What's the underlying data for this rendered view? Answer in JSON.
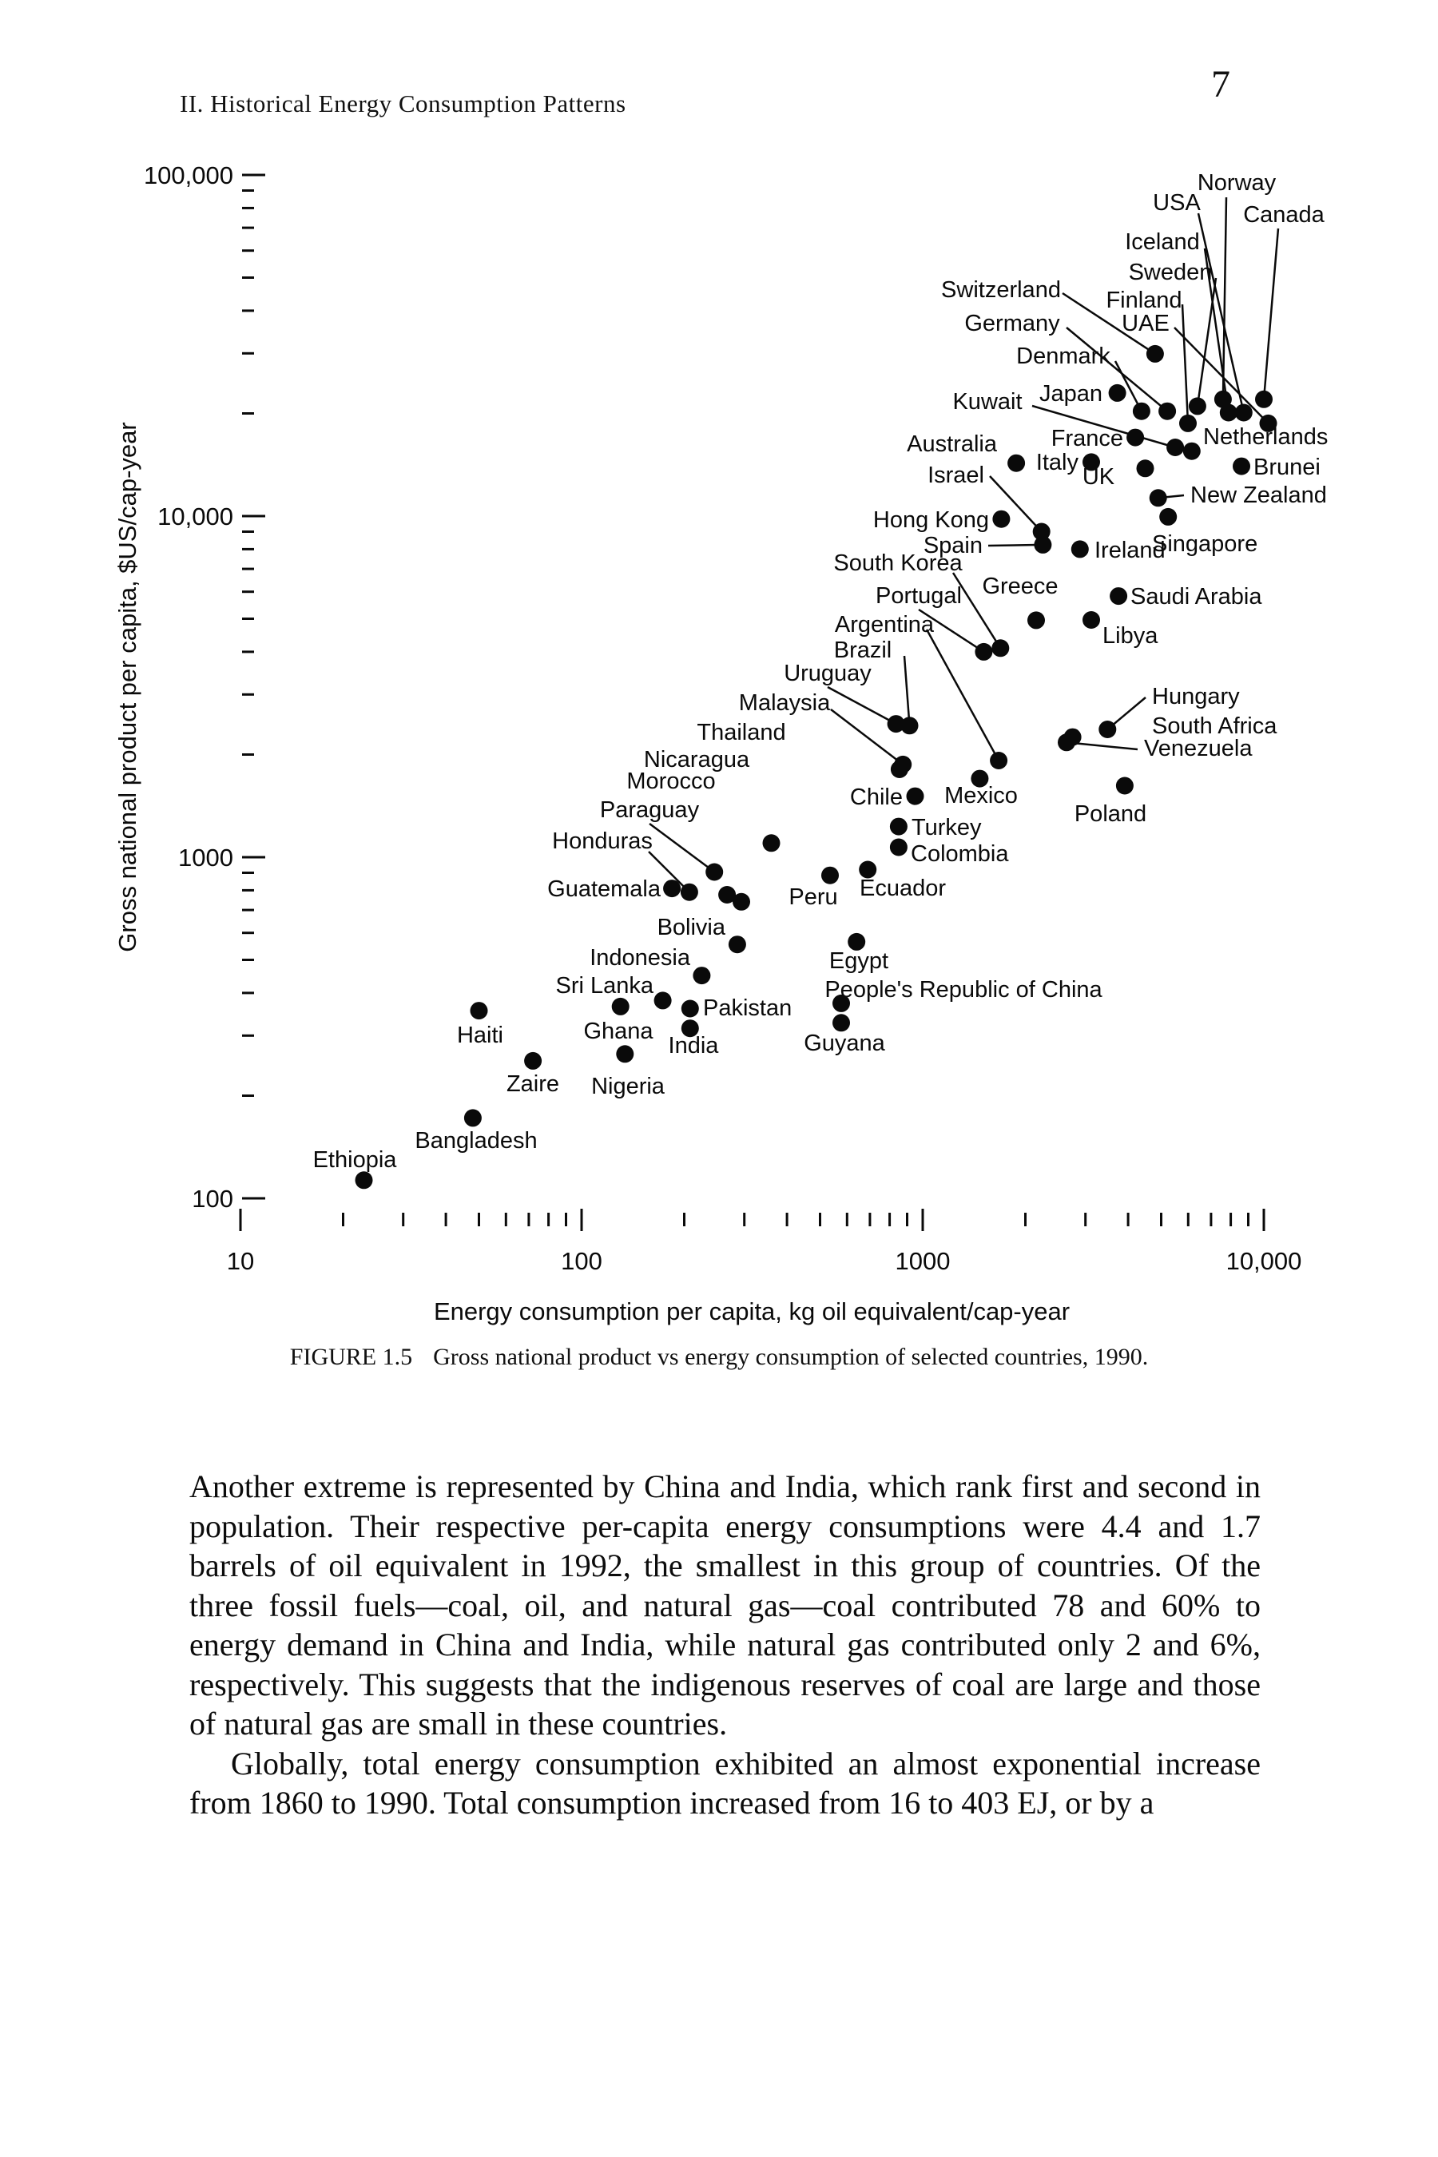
{
  "page": {
    "header": "II. Historical Energy Consumption Patterns",
    "page_number": "7"
  },
  "caption": {
    "tag": "FIGURE 1.5",
    "text": "Gross national product vs energy consumption of selected countries, 1990."
  },
  "body": {
    "para1": "Another extreme is represented by China and India, which rank first and second in population. Their respective per-capita energy consumptions were 4.4 and 1.7 barrels of oil equivalent in 1992, the smallest in this group of countries. Of the three fossil fuels—coal, oil, and natural gas—coal contributed 78 and 60% to energy demand in China and India, while natural gas contributed only 2 and 6%, respectively. This suggests that the indigenous reserves of coal are large and those of natural gas are small in these countries.",
    "para2": "Globally, total energy consumption exhibited an almost exponential increase from 1860 to 1990. Total consumption increased from 16 to 403 EJ, or by a"
  },
  "chart_data": {
    "type": "scatter",
    "title": "Gross national product vs energy consumption of selected countries, 1990",
    "xlabel": "Energy consumption per capita, kg oil equivalent/cap-year",
    "ylabel": "Gross national product per capita, $US/cap-year",
    "xscale": "log",
    "yscale": "log",
    "xlim": [
      10,
      10000
    ],
    "ylim": [
      100,
      100000
    ],
    "grid": false,
    "x_ticks": [
      {
        "v": 10,
        "label": "10"
      },
      {
        "v": 100,
        "label": "100"
      },
      {
        "v": 1000,
        "label": "1000"
      },
      {
        "v": 10000,
        "label": "10,000"
      }
    ],
    "y_ticks": [
      {
        "v": 100,
        "label": "100"
      },
      {
        "v": 1000,
        "label": "1000"
      },
      {
        "v": 10000,
        "label": "10,000"
      },
      {
        "v": 100000,
        "label": "100,000"
      }
    ],
    "points": [
      {
        "name": "Ethiopia",
        "energy": 23,
        "gnp": 113,
        "label": {
          "x": 444,
          "y": 1461,
          "anchor": "m"
        }
      },
      {
        "name": "Bangladesh",
        "energy": 48,
        "gnp": 172,
        "label": {
          "x": 596,
          "y": 1437,
          "anchor": "m"
        }
      },
      {
        "name": "Haiti",
        "energy": 50,
        "gnp": 355,
        "label": {
          "x": 601,
          "y": 1305,
          "anchor": "m"
        }
      },
      {
        "name": "Zaire",
        "energy": 72,
        "gnp": 253,
        "label": {
          "x": 667,
          "y": 1366,
          "anchor": "m"
        }
      },
      {
        "name": "Nigeria",
        "energy": 134,
        "gnp": 265,
        "label": {
          "x": 786,
          "y": 1369,
          "anchor": "m"
        }
      },
      {
        "name": "Ghana",
        "energy": 130,
        "gnp": 365,
        "label": {
          "x": 774,
          "y": 1300,
          "anchor": "m"
        }
      },
      {
        "name": "Sri Lanka",
        "energy": 173,
        "gnp": 380,
        "label": {
          "x": 818,
          "y": 1243,
          "anchor": "e"
        }
      },
      {
        "name": "Pakistan",
        "energy": 208,
        "gnp": 360,
        "label": {
          "x": 880,
          "y": 1271,
          "anchor": "s"
        }
      },
      {
        "name": "India",
        "energy": 208,
        "gnp": 315,
        "label": {
          "x": 868,
          "y": 1318,
          "anchor": "m"
        }
      },
      {
        "name": "Indonesia",
        "energy": 225,
        "gnp": 450,
        "label": {
          "x": 864,
          "y": 1208,
          "anchor": "e"
        }
      },
      {
        "name": "Bolivia",
        "energy": 286,
        "gnp": 555,
        "label": {
          "x": 908,
          "y": 1170,
          "anchor": "e"
        }
      },
      {
        "name": "People's Republic of China",
        "energy": 577,
        "gnp": 373,
        "label": {
          "x": 1206,
          "y": 1248,
          "anchor": "m"
        }
      },
      {
        "name": "Guyana",
        "energy": 577,
        "gnp": 327,
        "label": {
          "x": 1057,
          "y": 1315,
          "anchor": "m"
        }
      },
      {
        "name": "Egypt",
        "energy": 640,
        "gnp": 565,
        "label": {
          "x": 1075,
          "y": 1212,
          "anchor": "m"
        }
      },
      {
        "name": "Guatemala",
        "energy": 184,
        "gnp": 810,
        "label": {
          "x": 827,
          "y": 1122,
          "anchor": "e"
        }
      },
      {
        "name": "Honduras",
        "energy": 207,
        "gnp": 790,
        "label": {
          "x": 754,
          "y": 1062,
          "anchor": "m"
        },
        "leader": true,
        "from": [
          812,
          1066
        ]
      },
      {
        "name": "Paraguay",
        "energy": 245,
        "gnp": 905,
        "label": {
          "x": 813,
          "y": 1023,
          "anchor": "m"
        },
        "leader": true,
        "from": [
          813,
          1031
        ]
      },
      {
        "name": "Morocco",
        "energy": 267,
        "gnp": 776,
        "label": {
          "x": 840,
          "y": 987,
          "anchor": "m"
        }
      },
      {
        "name": "Nicaragua",
        "energy": 360,
        "gnp": 1100,
        "label": {
          "x": 872,
          "y": 960,
          "anchor": "m"
        }
      },
      {
        "name": "",
        "energy": 294,
        "gnp": 740
      },
      {
        "name": "Peru",
        "energy": 535,
        "gnp": 885,
        "label": {
          "x": 1018,
          "y": 1132,
          "anchor": "m"
        }
      },
      {
        "name": "Ecuador",
        "energy": 690,
        "gnp": 920,
        "label": {
          "x": 1130,
          "y": 1121,
          "anchor": "m"
        }
      },
      {
        "name": "Turkey",
        "energy": 850,
        "gnp": 1230,
        "label": {
          "x": 1141,
          "y": 1045,
          "anchor": "s"
        }
      },
      {
        "name": "Colombia",
        "energy": 850,
        "gnp": 1070,
        "label": {
          "x": 1140,
          "y": 1078,
          "anchor": "s"
        }
      },
      {
        "name": "Chile",
        "energy": 950,
        "gnp": 1510,
        "label": {
          "x": 1130,
          "y": 1007,
          "anchor": "e"
        }
      },
      {
        "name": "Mexico",
        "energy": 1470,
        "gnp": 1700,
        "label": {
          "x": 1228,
          "y": 1005,
          "anchor": "m"
        }
      },
      {
        "name": "Argentina",
        "energy": 1670,
        "gnp": 1920,
        "label": {
          "x": 1107,
          "y": 791,
          "anchor": "m"
        },
        "leader": true,
        "from": [
          1160,
          788
        ]
      },
      {
        "name": "Brazil",
        "energy": 915,
        "gnp": 2430,
        "label": {
          "x": 1080,
          "y": 823,
          "anchor": "m"
        },
        "leader": true,
        "from": [
          1132,
          821
        ]
      },
      {
        "name": "Uruguay",
        "energy": 835,
        "gnp": 2460,
        "label": {
          "x": 1036,
          "y": 852,
          "anchor": "m"
        },
        "leader": true,
        "from": [
          1036,
          860
        ]
      },
      {
        "name": "Malaysia",
        "energy": 875,
        "gnp": 1870,
        "label": {
          "x": 982,
          "y": 889,
          "anchor": "m"
        },
        "leader": true,
        "from": [
          1040,
          888
        ]
      },
      {
        "name": "Thailand",
        "energy": 855,
        "gnp": 1810,
        "label": {
          "x": 928,
          "y": 926,
          "anchor": "m"
        }
      },
      {
        "name": "Poland",
        "energy": 3910,
        "gnp": 1620,
        "label": {
          "x": 1390,
          "y": 1028,
          "anchor": "m"
        }
      },
      {
        "name": "Hungary",
        "energy": 3480,
        "gnp": 2370,
        "label": {
          "x": 1442,
          "y": 881,
          "anchor": "s"
        },
        "leader": true,
        "from": [
          1434,
          873
        ]
      },
      {
        "name": "South Africa",
        "energy": 2750,
        "gnp": 2250,
        "label": {
          "x": 1442,
          "y": 918,
          "anchor": "s"
        }
      },
      {
        "name": "Venezuela",
        "energy": 2640,
        "gnp": 2170,
        "label": {
          "x": 1432,
          "y": 946,
          "anchor": "s"
        },
        "leader": true,
        "from": [
          1424,
          938
        ]
      },
      {
        "name": "Libya",
        "energy": 3120,
        "gnp": 4960,
        "label": {
          "x": 1380,
          "y": 805,
          "anchor": "s"
        }
      },
      {
        "name": "Greece",
        "energy": 2150,
        "gnp": 4950,
        "label": {
          "x": 1277,
          "y": 743,
          "anchor": "m"
        }
      },
      {
        "name": "Saudi Arabia",
        "energy": 3750,
        "gnp": 5830,
        "label": {
          "x": 1415,
          "y": 756,
          "anchor": "s"
        }
      },
      {
        "name": "South Korea",
        "energy": 1690,
        "gnp": 4100,
        "label": {
          "x": 1124,
          "y": 714,
          "anchor": "m"
        },
        "leader": true,
        "from": [
          1193,
          717
        ]
      },
      {
        "name": "Portugal",
        "energy": 1510,
        "gnp": 4000,
        "label": {
          "x": 1150,
          "y": 755,
          "anchor": "m"
        },
        "leader": true,
        "from": [
          1150,
          763
        ]
      },
      {
        "name": "Spain",
        "energy": 2250,
        "gnp": 8240,
        "label": {
          "x": 1230,
          "y": 692,
          "anchor": "e"
        },
        "leader": true,
        "from": [
          1237,
          683
        ]
      },
      {
        "name": "Israel",
        "energy": 2230,
        "gnp": 9000,
        "label": {
          "x": 1232,
          "y": 604,
          "anchor": "e"
        },
        "leader": true,
        "from": [
          1239,
          596
        ]
      },
      {
        "name": "Ireland",
        "energy": 2890,
        "gnp": 8000,
        "label": {
          "x": 1370,
          "y": 698,
          "anchor": "s"
        }
      },
      {
        "name": "Hong Kong",
        "energy": 1700,
        "gnp": 9800,
        "label": {
          "x": 1238,
          "y": 660,
          "anchor": "e"
        }
      },
      {
        "name": "Singapore",
        "energy": 5240,
        "gnp": 9950,
        "label": {
          "x": 1442,
          "y": 690,
          "anchor": "s"
        }
      },
      {
        "name": "New Zealand",
        "energy": 4900,
        "gnp": 11300,
        "label": {
          "x": 1490,
          "y": 629,
          "anchor": "s"
        },
        "leader": true,
        "from": [
          1482,
          620
        ]
      },
      {
        "name": "UK",
        "energy": 4490,
        "gnp": 13800,
        "label": {
          "x": 1375,
          "y": 606,
          "anchor": "m"
        }
      },
      {
        "name": "Australia",
        "energy": 1880,
        "gnp": 14300,
        "label": {
          "x": 1248,
          "y": 565,
          "anchor": "e"
        }
      },
      {
        "name": "Italy",
        "energy": 3120,
        "gnp": 14400,
        "label": {
          "x": 1350,
          "y": 588,
          "anchor": "e"
        }
      },
      {
        "name": "Brunei",
        "energy": 8600,
        "gnp": 14000,
        "label": {
          "x": 1569,
          "y": 594,
          "anchor": "s"
        }
      },
      {
        "name": "Netherlands",
        "energy": 6150,
        "gnp": 15500,
        "label": {
          "x": 1506,
          "y": 556,
          "anchor": "s"
        }
      },
      {
        "name": "France",
        "energy": 4200,
        "gnp": 17000,
        "label": {
          "x": 1406,
          "y": 558,
          "anchor": "e"
        }
      },
      {
        "name": "Kuwait",
        "energy": 5500,
        "gnp": 15900,
        "label": {
          "x": 1236,
          "y": 512,
          "anchor": "m"
        },
        "leader": true,
        "from": [
          1292,
          508
        ]
      },
      {
        "name": "Japan",
        "energy": 3720,
        "gnp": 22950,
        "label": {
          "x": 1380,
          "y": 502,
          "anchor": "e"
        }
      },
      {
        "name": "Switzerland",
        "energy": 4800,
        "gnp": 29900,
        "label": {
          "x": 1253,
          "y": 372,
          "anchor": "m"
        },
        "leader": true,
        "from": [
          1330,
          367
        ]
      },
      {
        "name": "Denmark",
        "energy": 4380,
        "gnp": 20300,
        "label": {
          "x": 1331,
          "y": 455,
          "anchor": "m"
        },
        "leader": true,
        "from": [
          1396,
          452
        ]
      },
      {
        "name": "Germany",
        "energy": 5210,
        "gnp": 20300,
        "label": {
          "x": 1267,
          "y": 414,
          "anchor": "m"
        },
        "leader": true,
        "from": [
          1335,
          410
        ]
      },
      {
        "name": "Norway",
        "energy": 7590,
        "gnp": 22000,
        "label": {
          "x": 1548,
          "y": 238,
          "anchor": "m"
        },
        "leader": true,
        "from": [
          1535,
          247
        ]
      },
      {
        "name": "USA",
        "energy": 8730,
        "gnp": 20100,
        "label": {
          "x": 1473,
          "y": 263,
          "anchor": "m"
        },
        "leader": true,
        "from": [
          1500,
          267
        ]
      },
      {
        "name": "Canada",
        "energy": 10000,
        "gnp": 22000,
        "label": {
          "x": 1607,
          "y": 278,
          "anchor": "m"
        },
        "leader": true,
        "from": [
          1600,
          286
        ]
      },
      {
        "name": "Iceland",
        "energy": 7880,
        "gnp": 20100,
        "label": {
          "x": 1455,
          "y": 312,
          "anchor": "m"
        },
        "leader": true,
        "from": [
          1508,
          311
        ]
      },
      {
        "name": "Sweden",
        "energy": 6390,
        "gnp": 21000,
        "label": {
          "x": 1465,
          "y": 350,
          "anchor": "m"
        },
        "leader": true,
        "from": [
          1522,
          348
        ]
      },
      {
        "name": "Finland",
        "energy": 5990,
        "gnp": 18700,
        "label": {
          "x": 1432,
          "y": 385,
          "anchor": "m"
        },
        "leader": true,
        "from": [
          1480,
          381
        ]
      },
      {
        "name": "UAE",
        "energy": 10300,
        "gnp": 18700,
        "label": {
          "x": 1434,
          "y": 414,
          "anchor": "m"
        },
        "leader": true,
        "from": [
          1470,
          410
        ]
      }
    ]
  }
}
